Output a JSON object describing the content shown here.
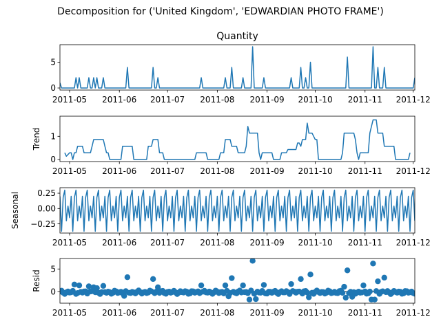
{
  "suptitle": "Decomposition for ('United Kingdom', 'EDWARDIAN PHOTO FRAME')",
  "line_color": "#1f77b4",
  "chart_data": [
    {
      "type": "line",
      "title": "Quantity",
      "ylabel": "",
      "xlim": [
        "2011-04-25",
        "2011-12-02"
      ],
      "ylim": [
        -0.4,
        8.4
      ],
      "yticks": [
        {
          "v": 0,
          "label": "0"
        },
        {
          "v": 5,
          "label": "5"
        }
      ],
      "xticks": [
        {
          "d": "2011-05-01",
          "label": "2011-05"
        },
        {
          "d": "2011-06-01",
          "label": "2011-06"
        },
        {
          "d": "2011-07-01",
          "label": "2011-07"
        },
        {
          "d": "2011-08-01",
          "label": "2011-08"
        },
        {
          "d": "2011-09-01",
          "label": "2011-09"
        },
        {
          "d": "2011-10-01",
          "label": "2011-10"
        },
        {
          "d": "2011-11-01",
          "label": "2011-11"
        },
        {
          "d": "2011-12-01",
          "label": "2011-12"
        }
      ],
      "spikes": [
        {
          "d": "2011-04-25",
          "v": 1
        },
        {
          "d": "2011-05-05",
          "v": 2
        },
        {
          "d": "2011-05-07",
          "v": 2
        },
        {
          "d": "2011-05-13",
          "v": 2
        },
        {
          "d": "2011-05-16",
          "v": 2
        },
        {
          "d": "2011-05-18",
          "v": 2
        },
        {
          "d": "2011-05-22",
          "v": 2
        },
        {
          "d": "2011-06-06",
          "v": 4
        },
        {
          "d": "2011-06-22",
          "v": 4
        },
        {
          "d": "2011-06-25",
          "v": 2
        },
        {
          "d": "2011-07-22",
          "v": 2
        },
        {
          "d": "2011-08-06",
          "v": 2
        },
        {
          "d": "2011-08-10",
          "v": 4
        },
        {
          "d": "2011-08-17",
          "v": 2
        },
        {
          "d": "2011-08-23",
          "v": 8
        },
        {
          "d": "2011-08-30",
          "v": 2
        },
        {
          "d": "2011-09-16",
          "v": 2
        },
        {
          "d": "2011-09-22",
          "v": 4
        },
        {
          "d": "2011-09-25",
          "v": 2
        },
        {
          "d": "2011-09-28",
          "v": 5
        },
        {
          "d": "2011-10-21",
          "v": 6
        },
        {
          "d": "2011-11-06",
          "v": 8
        },
        {
          "d": "2011-11-09",
          "v": 4
        },
        {
          "d": "2011-11-13",
          "v": 4
        },
        {
          "d": "2011-12-02",
          "v": 2
        }
      ]
    },
    {
      "type": "line",
      "title": "",
      "ylabel": "Trend",
      "xlim": [
        "2011-04-25",
        "2011-12-02"
      ],
      "ylim": [
        -0.09,
        1.87
      ],
      "yticks": [
        {
          "v": 0,
          "label": "0"
        },
        {
          "v": 1,
          "label": "1"
        }
      ],
      "xticks": [
        {
          "d": "2011-05-01",
          "label": "2011-05"
        },
        {
          "d": "2011-06-01",
          "label": "2011-06"
        },
        {
          "d": "2011-07-01",
          "label": "2011-07"
        },
        {
          "d": "2011-08-01",
          "label": "2011-08"
        },
        {
          "d": "2011-09-01",
          "label": "2011-09"
        },
        {
          "d": "2011-10-01",
          "label": "2011-10"
        },
        {
          "d": "2011-11-01",
          "label": "2011-11"
        },
        {
          "d": "2011-12-01",
          "label": "2011-12"
        }
      ],
      "points": [
        {
          "d": "2011-04-28",
          "v": 0.29
        },
        {
          "d": "2011-04-29",
          "v": 0.14
        },
        {
          "d": "2011-05-01",
          "v": 0.29
        },
        {
          "d": "2011-05-02",
          "v": 0.29
        },
        {
          "d": "2011-05-03",
          "v": 0.0
        },
        {
          "d": "2011-05-04",
          "v": 0.29
        },
        {
          "d": "2011-05-05",
          "v": 0.29
        },
        {
          "d": "2011-05-06",
          "v": 0.57
        },
        {
          "d": "2011-05-09",
          "v": 0.57
        },
        {
          "d": "2011-05-10",
          "v": 0.29
        },
        {
          "d": "2011-05-14",
          "v": 0.29
        },
        {
          "d": "2011-05-15",
          "v": 0.57
        },
        {
          "d": "2011-05-16",
          "v": 0.86
        },
        {
          "d": "2011-05-22",
          "v": 0.86
        },
        {
          "d": "2011-05-23",
          "v": 0.57
        },
        {
          "d": "2011-05-24",
          "v": 0.29
        },
        {
          "d": "2011-05-25",
          "v": 0.29
        },
        {
          "d": "2011-05-26",
          "v": 0.0
        },
        {
          "d": "2011-06-02",
          "v": 0.0
        },
        {
          "d": "2011-06-03",
          "v": 0.57
        },
        {
          "d": "2011-06-09",
          "v": 0.57
        },
        {
          "d": "2011-06-10",
          "v": 0.0
        },
        {
          "d": "2011-06-18",
          "v": 0.0
        },
        {
          "d": "2011-06-19",
          "v": 0.57
        },
        {
          "d": "2011-06-21",
          "v": 0.57
        },
        {
          "d": "2011-06-22",
          "v": 0.86
        },
        {
          "d": "2011-06-25",
          "v": 0.86
        },
        {
          "d": "2011-06-26",
          "v": 0.29
        },
        {
          "d": "2011-06-28",
          "v": 0.29
        },
        {
          "d": "2011-06-29",
          "v": 0.0
        },
        {
          "d": "2011-07-18",
          "v": 0.0
        },
        {
          "d": "2011-07-19",
          "v": 0.29
        },
        {
          "d": "2011-07-25",
          "v": 0.29
        },
        {
          "d": "2011-07-26",
          "v": 0.0
        },
        {
          "d": "2011-08-02",
          "v": 0.0
        },
        {
          "d": "2011-08-03",
          "v": 0.29
        },
        {
          "d": "2011-08-05",
          "v": 0.29
        },
        {
          "d": "2011-08-06",
          "v": 0.86
        },
        {
          "d": "2011-08-09",
          "v": 0.86
        },
        {
          "d": "2011-08-10",
          "v": 0.57
        },
        {
          "d": "2011-08-13",
          "v": 0.57
        },
        {
          "d": "2011-08-14",
          "v": 0.29
        },
        {
          "d": "2011-08-18",
          "v": 0.29
        },
        {
          "d": "2011-08-19",
          "v": 0.57
        },
        {
          "d": "2011-08-20",
          "v": 1.43
        },
        {
          "d": "2011-08-21",
          "v": 1.14
        },
        {
          "d": "2011-08-26",
          "v": 1.14
        },
        {
          "d": "2011-08-27",
          "v": 0.29
        },
        {
          "d": "2011-08-28",
          "v": 0.0
        },
        {
          "d": "2011-08-29",
          "v": 0.29
        },
        {
          "d": "2011-09-04",
          "v": 0.29
        },
        {
          "d": "2011-09-05",
          "v": 0.0
        },
        {
          "d": "2011-09-09",
          "v": 0.0
        },
        {
          "d": "2011-09-10",
          "v": 0.29
        },
        {
          "d": "2011-09-13",
          "v": 0.29
        },
        {
          "d": "2011-09-14",
          "v": 0.43
        },
        {
          "d": "2011-09-19",
          "v": 0.43
        },
        {
          "d": "2011-09-20",
          "v": 0.71
        },
        {
          "d": "2011-09-21",
          "v": 0.71
        },
        {
          "d": "2011-09-22",
          "v": 0.57
        },
        {
          "d": "2011-09-23",
          "v": 0.86
        },
        {
          "d": "2011-09-25",
          "v": 0.86
        },
        {
          "d": "2011-09-26",
          "v": 1.57
        },
        {
          "d": "2011-09-27",
          "v": 1.14
        },
        {
          "d": "2011-09-29",
          "v": 1.14
        },
        {
          "d": "2011-09-30",
          "v": 1.0
        },
        {
          "d": "2011-10-01",
          "v": 0.86
        },
        {
          "d": "2011-10-02",
          "v": 0.86
        },
        {
          "d": "2011-10-03",
          "v": 0.0
        },
        {
          "d": "2011-10-17",
          "v": 0.0
        },
        {
          "d": "2011-10-18",
          "v": 0.29
        },
        {
          "d": "2011-10-19",
          "v": 1.14
        },
        {
          "d": "2011-10-25",
          "v": 1.14
        },
        {
          "d": "2011-10-26",
          "v": 0.86
        },
        {
          "d": "2011-10-27",
          "v": 0.29
        },
        {
          "d": "2011-10-28",
          "v": 0.0
        },
        {
          "d": "2011-10-29",
          "v": 0.29
        },
        {
          "d": "2011-11-03",
          "v": 0.29
        },
        {
          "d": "2011-11-04",
          "v": 1.14
        },
        {
          "d": "2011-11-05",
          "v": 1.43
        },
        {
          "d": "2011-11-06",
          "v": 1.71
        },
        {
          "d": "2011-11-08",
          "v": 1.71
        },
        {
          "d": "2011-11-09",
          "v": 1.14
        },
        {
          "d": "2011-11-12",
          "v": 1.14
        },
        {
          "d": "2011-11-13",
          "v": 0.57
        },
        {
          "d": "2011-11-19",
          "v": 0.57
        },
        {
          "d": "2011-11-20",
          "v": 0.0
        },
        {
          "d": "2011-11-28",
          "v": 0.0
        },
        {
          "d": "2011-11-29",
          "v": 0.29
        }
      ]
    },
    {
      "type": "line",
      "title": "",
      "ylabel": "Seasonal",
      "xlim": [
        "2011-04-25",
        "2011-12-02"
      ],
      "ylim": [
        -0.4,
        0.34
      ],
      "yticks": [
        {
          "v": 0.25,
          "label": "0.25"
        },
        {
          "v": 0.0,
          "label": "0.00"
        },
        {
          "v": -0.25,
          "label": "−0.25"
        }
      ],
      "xticks": [
        {
          "d": "2011-05-01",
          "label": "2011-05"
        },
        {
          "d": "2011-06-01",
          "label": "2011-06"
        },
        {
          "d": "2011-07-01",
          "label": "2011-07"
        },
        {
          "d": "2011-08-01",
          "label": "2011-08"
        },
        {
          "d": "2011-09-01",
          "label": "2011-09"
        },
        {
          "d": "2011-10-01",
          "label": "2011-10"
        },
        {
          "d": "2011-11-01",
          "label": "2011-11"
        },
        {
          "d": "2011-12-01",
          "label": "2011-12"
        }
      ],
      "weekly_pattern": [
        0.2,
        -0.37,
        0.18,
        0.3,
        -0.2,
        0.04,
        -0.15
      ]
    },
    {
      "type": "scatter",
      "title": "",
      "ylabel": "Resid",
      "xlim": [
        "2011-04-25",
        "2011-12-02"
      ],
      "ylim": [
        -2.5,
        7.3
      ],
      "yticks": [
        {
          "v": 0,
          "label": "0"
        },
        {
          "v": 5,
          "label": "5"
        }
      ],
      "xticks": [
        {
          "d": "2011-05-01",
          "label": "2011-05"
        },
        {
          "d": "2011-06-01",
          "label": "2011-06"
        },
        {
          "d": "2011-07-01",
          "label": "2011-07"
        },
        {
          "d": "2011-08-01",
          "label": "2011-08"
        },
        {
          "d": "2011-09-01",
          "label": "2011-09"
        },
        {
          "d": "2011-10-01",
          "label": "2011-10"
        },
        {
          "d": "2011-11-01",
          "label": "2011-11"
        },
        {
          "d": "2011-12-01",
          "label": "2011-12"
        }
      ],
      "outliers": [
        {
          "d": "2011-05-04",
          "v": 1.6
        },
        {
          "d": "2011-05-07",
          "v": 1.4
        },
        {
          "d": "2011-05-13",
          "v": 1.2
        },
        {
          "d": "2011-05-16",
          "v": 1.0
        },
        {
          "d": "2011-05-18",
          "v": 0.8
        },
        {
          "d": "2011-05-22",
          "v": 1.3
        },
        {
          "d": "2011-06-06",
          "v": 3.2
        },
        {
          "d": "2011-06-22",
          "v": 2.8
        },
        {
          "d": "2011-06-25",
          "v": 1.0
        },
        {
          "d": "2011-07-22",
          "v": 1.4
        },
        {
          "d": "2011-08-06",
          "v": 1.4
        },
        {
          "d": "2011-08-10",
          "v": 3.0
        },
        {
          "d": "2011-08-17",
          "v": 1.4
        },
        {
          "d": "2011-08-23",
          "v": 6.8
        },
        {
          "d": "2011-08-30",
          "v": 1.5
        },
        {
          "d": "2011-09-16",
          "v": 1.7
        },
        {
          "d": "2011-09-22",
          "v": 2.8
        },
        {
          "d": "2011-09-28",
          "v": 3.8
        },
        {
          "d": "2011-10-19",
          "v": 1.1
        },
        {
          "d": "2011-10-21",
          "v": 4.7
        },
        {
          "d": "2011-10-31",
          "v": 1.4
        },
        {
          "d": "2011-11-06",
          "v": 6.2
        },
        {
          "d": "2011-11-09",
          "v": 2.3
        },
        {
          "d": "2011-11-13",
          "v": 3.1
        },
        {
          "d": "2011-08-21",
          "v": -1.7
        },
        {
          "d": "2011-08-25",
          "v": -1.6
        },
        {
          "d": "2011-09-27",
          "v": -1.2
        },
        {
          "d": "2011-10-20",
          "v": -1.3
        },
        {
          "d": "2011-11-05",
          "v": -1.7
        },
        {
          "d": "2011-11-07",
          "v": -1.7
        },
        {
          "d": "2011-06-04",
          "v": -0.9
        },
        {
          "d": "2011-08-08",
          "v": -1.0
        },
        {
          "d": "2011-10-24",
          "v": -1.1
        }
      ]
    }
  ]
}
